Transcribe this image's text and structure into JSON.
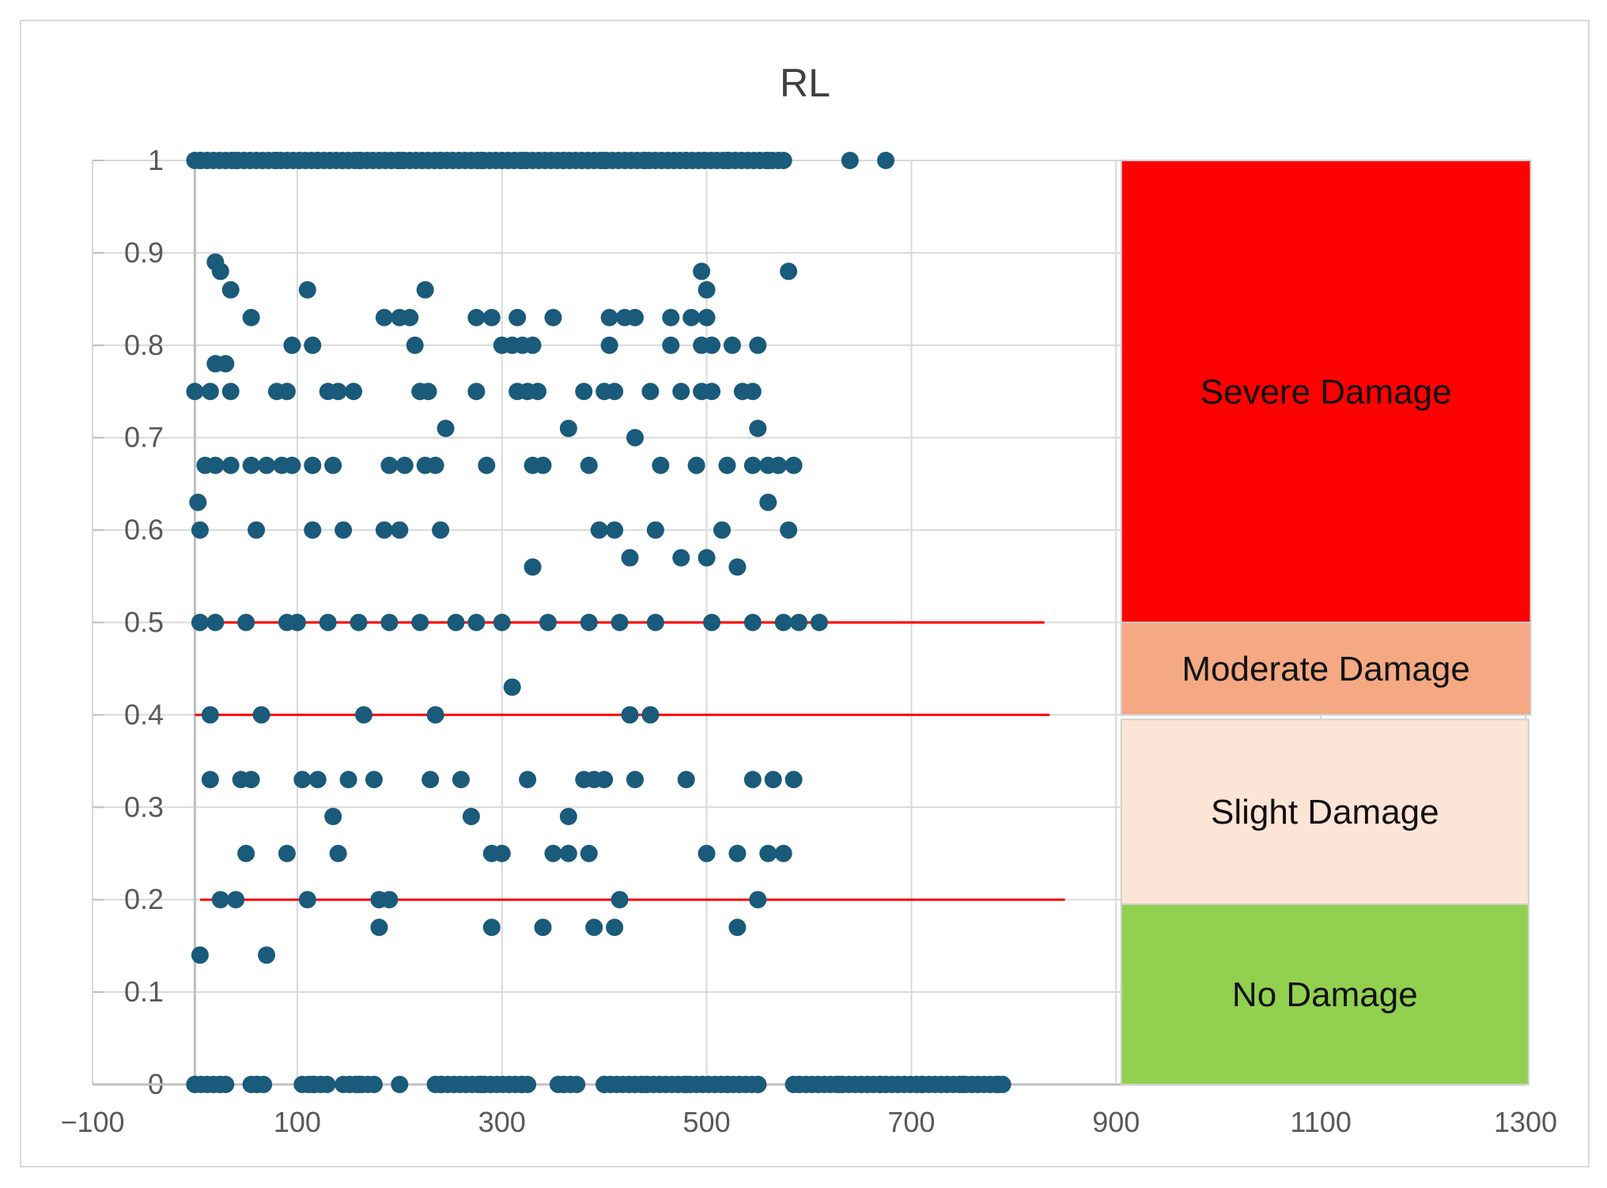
{
  "chart_data": {
    "type": "scatter",
    "title": "RL",
    "xlabel": "",
    "ylabel": "",
    "xlim": [
      -100,
      1300
    ],
    "ylim": [
      0,
      1
    ],
    "x_ticks": [
      "-100",
      "100",
      "300",
      "500",
      "700",
      "900",
      "1100",
      "1300"
    ],
    "y_ticks": [
      "0",
      "0.1",
      "0.2",
      "0.3",
      "0.4",
      "0.5",
      "0.6",
      "0.7",
      "0.8",
      "0.9",
      "1"
    ],
    "grid": true,
    "marker_color": "#1a5a7a",
    "threshold_color": "#ff0000",
    "thresholds": [
      {
        "y": 0.5,
        "x_start": 0,
        "x_end": 830
      },
      {
        "y": 0.4,
        "x_start": 0,
        "x_end": 835
      },
      {
        "y": 0.2,
        "x_start": 5,
        "x_end": 850
      }
    ],
    "damage_zones": [
      {
        "label": "Severe Damage",
        "y_min": 0.5,
        "y_max": 1.0,
        "x_min": 905,
        "x_max": 1305,
        "color": "#ff0000"
      },
      {
        "label": "Moderate Damage",
        "y_min": 0.4,
        "y_max": 0.5,
        "x_min": 905,
        "x_max": 1305,
        "color": "#f4a982"
      },
      {
        "label": "Slight Damage",
        "y_min": 0.195,
        "y_max": 0.395,
        "x_min": 905,
        "x_max": 1303,
        "color": "#fce4d6"
      },
      {
        "label": "No Damage",
        "y_min": 0.0,
        "y_max": 0.195,
        "x_min": 905,
        "x_max": 1303,
        "color": "#92d050"
      }
    ],
    "series": [
      {
        "name": "RL",
        "points": [
          [
            5,
            1
          ],
          [
            40,
            1
          ],
          [
            80,
            1
          ],
          [
            120,
            1
          ],
          [
            160,
            1
          ],
          [
            200,
            1
          ],
          [
            240,
            1
          ],
          [
            280,
            1
          ],
          [
            320,
            1
          ],
          [
            360,
            1
          ],
          [
            400,
            1
          ],
          [
            440,
            1
          ],
          [
            480,
            1
          ],
          [
            520,
            1
          ],
          [
            560,
            1
          ],
          [
            575,
            1
          ],
          [
            640,
            1
          ],
          [
            675,
            1
          ],
          [
            0,
            0.75
          ],
          [
            15,
            0.75
          ],
          [
            35,
            0.75
          ],
          [
            80,
            0.75
          ],
          [
            90,
            0.75
          ],
          [
            130,
            0.75
          ],
          [
            140,
            0.75
          ],
          [
            155,
            0.75
          ],
          [
            220,
            0.75
          ],
          [
            228,
            0.75
          ],
          [
            275,
            0.75
          ],
          [
            315,
            0.75
          ],
          [
            325,
            0.75
          ],
          [
            335,
            0.75
          ],
          [
            380,
            0.75
          ],
          [
            400,
            0.75
          ],
          [
            410,
            0.75
          ],
          [
            445,
            0.75
          ],
          [
            475,
            0.75
          ],
          [
            495,
            0.75
          ],
          [
            505,
            0.75
          ],
          [
            535,
            0.75
          ],
          [
            545,
            0.75
          ],
          [
            10,
            0.67
          ],
          [
            20,
            0.67
          ],
          [
            35,
            0.67
          ],
          [
            55,
            0.67
          ],
          [
            70,
            0.67
          ],
          [
            85,
            0.67
          ],
          [
            95,
            0.67
          ],
          [
            115,
            0.67
          ],
          [
            135,
            0.67
          ],
          [
            190,
            0.67
          ],
          [
            205,
            0.67
          ],
          [
            225,
            0.67
          ],
          [
            235,
            0.67
          ],
          [
            285,
            0.67
          ],
          [
            330,
            0.67
          ],
          [
            340,
            0.67
          ],
          [
            385,
            0.67
          ],
          [
            455,
            0.67
          ],
          [
            490,
            0.67
          ],
          [
            520,
            0.67
          ],
          [
            545,
            0.67
          ],
          [
            560,
            0.67
          ],
          [
            570,
            0.67
          ],
          [
            585,
            0.67
          ],
          [
            3,
            0.63
          ],
          [
            560,
            0.63
          ],
          [
            5,
            0.6
          ],
          [
            60,
            0.6
          ],
          [
            115,
            0.6
          ],
          [
            145,
            0.6
          ],
          [
            185,
            0.6
          ],
          [
            200,
            0.6
          ],
          [
            240,
            0.6
          ],
          [
            395,
            0.6
          ],
          [
            410,
            0.6
          ],
          [
            450,
            0.6
          ],
          [
            515,
            0.6
          ],
          [
            580,
            0.6
          ],
          [
            20,
            0.89
          ],
          [
            25,
            0.88
          ],
          [
            35,
            0.86
          ],
          [
            110,
            0.86
          ],
          [
            225,
            0.86
          ],
          [
            495,
            0.88
          ],
          [
            500,
            0.86
          ],
          [
            580,
            0.88
          ],
          [
            55,
            0.83
          ],
          [
            185,
            0.83
          ],
          [
            200,
            0.83
          ],
          [
            210,
            0.83
          ],
          [
            275,
            0.83
          ],
          [
            290,
            0.83
          ],
          [
            315,
            0.83
          ],
          [
            350,
            0.83
          ],
          [
            405,
            0.83
          ],
          [
            420,
            0.83
          ],
          [
            430,
            0.83
          ],
          [
            465,
            0.83
          ],
          [
            485,
            0.83
          ],
          [
            500,
            0.83
          ],
          [
            95,
            0.8
          ],
          [
            115,
            0.8
          ],
          [
            215,
            0.8
          ],
          [
            300,
            0.8
          ],
          [
            310,
            0.8
          ],
          [
            320,
            0.8
          ],
          [
            330,
            0.8
          ],
          [
            405,
            0.8
          ],
          [
            465,
            0.8
          ],
          [
            495,
            0.8
          ],
          [
            505,
            0.8
          ],
          [
            525,
            0.8
          ],
          [
            550,
            0.8
          ],
          [
            20,
            0.78
          ],
          [
            30,
            0.78
          ],
          [
            245,
            0.71
          ],
          [
            365,
            0.71
          ],
          [
            550,
            0.71
          ],
          [
            430,
            0.7
          ],
          [
            330,
            0.56
          ],
          [
            425,
            0.57
          ],
          [
            475,
            0.57
          ],
          [
            500,
            0.57
          ],
          [
            530,
            0.56
          ],
          [
            5,
            0.5
          ],
          [
            20,
            0.5
          ],
          [
            50,
            0.5
          ],
          [
            90,
            0.5
          ],
          [
            100,
            0.5
          ],
          [
            130,
            0.5
          ],
          [
            160,
            0.5
          ],
          [
            190,
            0.5
          ],
          [
            220,
            0.5
          ],
          [
            255,
            0.5
          ],
          [
            275,
            0.5
          ],
          [
            300,
            0.5
          ],
          [
            345,
            0.5
          ],
          [
            385,
            0.5
          ],
          [
            415,
            0.5
          ],
          [
            450,
            0.5
          ],
          [
            505,
            0.5
          ],
          [
            545,
            0.5
          ],
          [
            575,
            0.5
          ],
          [
            590,
            0.5
          ],
          [
            610,
            0.5
          ],
          [
            310,
            0.43
          ],
          [
            15,
            0.4
          ],
          [
            65,
            0.4
          ],
          [
            165,
            0.4
          ],
          [
            235,
            0.4
          ],
          [
            425,
            0.4
          ],
          [
            445,
            0.4
          ],
          [
            15,
            0.33
          ],
          [
            45,
            0.33
          ],
          [
            55,
            0.33
          ],
          [
            105,
            0.33
          ],
          [
            120,
            0.33
          ],
          [
            150,
            0.33
          ],
          [
            175,
            0.33
          ],
          [
            230,
            0.33
          ],
          [
            260,
            0.33
          ],
          [
            325,
            0.33
          ],
          [
            380,
            0.33
          ],
          [
            390,
            0.33
          ],
          [
            400,
            0.33
          ],
          [
            430,
            0.33
          ],
          [
            480,
            0.33
          ],
          [
            545,
            0.33
          ],
          [
            565,
            0.33
          ],
          [
            585,
            0.33
          ],
          [
            135,
            0.29
          ],
          [
            270,
            0.29
          ],
          [
            365,
            0.29
          ],
          [
            50,
            0.25
          ],
          [
            90,
            0.25
          ],
          [
            140,
            0.25
          ],
          [
            290,
            0.25
          ],
          [
            300,
            0.25
          ],
          [
            350,
            0.25
          ],
          [
            365,
            0.25
          ],
          [
            385,
            0.25
          ],
          [
            500,
            0.25
          ],
          [
            530,
            0.25
          ],
          [
            560,
            0.25
          ],
          [
            575,
            0.25
          ],
          [
            25,
            0.2
          ],
          [
            40,
            0.2
          ],
          [
            110,
            0.2
          ],
          [
            180,
            0.2
          ],
          [
            190,
            0.2
          ],
          [
            415,
            0.2
          ],
          [
            550,
            0.2
          ],
          [
            180,
            0.17
          ],
          [
            290,
            0.17
          ],
          [
            340,
            0.17
          ],
          [
            390,
            0.17
          ],
          [
            410,
            0.17
          ],
          [
            530,
            0.17
          ],
          [
            5,
            0.14
          ],
          [
            70,
            0.14
          ],
          [
            0,
            0
          ],
          [
            25,
            0
          ],
          [
            60,
            0
          ],
          [
            115,
            0
          ],
          [
            160,
            0
          ],
          [
            200,
            0
          ],
          [
            240,
            0
          ],
          [
            280,
            0
          ],
          [
            320,
            0
          ],
          [
            360,
            0
          ],
          [
            400,
            0
          ],
          [
            440,
            0
          ],
          [
            480,
            0
          ],
          [
            520,
            0
          ],
          [
            550,
            0
          ],
          [
            590,
            0
          ],
          [
            630,
            0
          ],
          [
            670,
            0
          ],
          [
            710,
            0
          ],
          [
            750,
            0
          ],
          [
            785,
            0
          ]
        ]
      }
    ]
  }
}
